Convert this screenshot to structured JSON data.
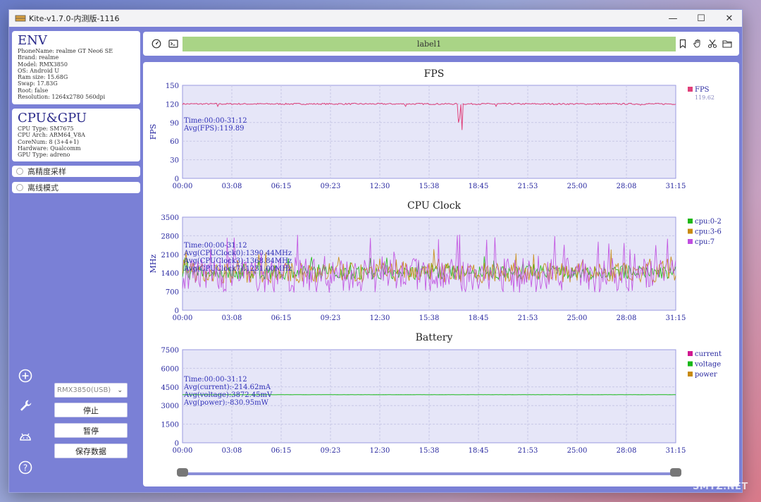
{
  "window": {
    "title": "Kite-v1.7.0-内测版-1116",
    "controls": {
      "minimize": "—",
      "maximize": "☐",
      "close": "✕"
    }
  },
  "env": {
    "heading": "ENV",
    "lines": [
      "PhoneName: realme GT Neo6 SE",
      "Brand: realme",
      "Model: RMX3850",
      "OS: Android U",
      "Ram size: 15.68G",
      "Swap: 17.83G",
      "Root: false",
      "Resolution: 1264x2780 560dpi"
    ]
  },
  "cpu_gpu": {
    "heading": "CPU&GPU",
    "lines": [
      "CPU Type: SM7675",
      "CPU Arch: ARM64_V8A",
      "CoreNum: 8 (3+4+1)",
      "Hardware: Qualcomm",
      "GPU Type: adreno"
    ]
  },
  "options": {
    "high_precision": "高精度采样",
    "offline_mode": "离线模式"
  },
  "device_select": {
    "value": "RMX3850(USB)"
  },
  "buttons": {
    "stop": "停止",
    "pause": "暂停",
    "save": "保存数据"
  },
  "toolbar": {
    "label": "label1"
  },
  "watermark": "SMYZ.NET",
  "colors": {
    "fps": "#e0407a",
    "cpu_0_2": "#1fb814",
    "cpu_3_6": "#c88a10",
    "cpu_7": "#c04ee0",
    "current": "#d01890",
    "voltage": "#18b818",
    "power": "#c88a10",
    "plot_bg": "#e6e6f8",
    "grid": "#c8c8e6",
    "axis_text": "#2828a0"
  },
  "chart_data": [
    {
      "type": "line",
      "title": "FPS",
      "ylabel": "FPS",
      "xlabel": "",
      "ylim": [
        0,
        150
      ],
      "yticks": [
        "0",
        "30",
        "60",
        "90",
        "120",
        "150"
      ],
      "xticks": [
        "00:00",
        "03:08",
        "06:15",
        "09:23",
        "12:30",
        "15:38",
        "18:45",
        "21:53",
        "25:00",
        "28:08",
        "31:15"
      ],
      "annotations": [
        "Time:00:00-31:12",
        "Avg(FPS):119.89"
      ],
      "series": [
        {
          "name": "FPS",
          "legend_value": "119.62",
          "color_key": "fps",
          "base": 120,
          "noise": 1.2,
          "x": [
            0,
            31.2
          ],
          "spikes": [
            [
              17.45,
              90
            ],
            [
              17.55,
              97
            ],
            [
              17.65,
              78
            ],
            [
              2.2,
              116
            ],
            [
              14.1,
              116
            ],
            [
              19.8,
              116
            ],
            [
              29.0,
              118
            ]
          ]
        }
      ]
    },
    {
      "type": "line",
      "title": "CPU Clock",
      "ylabel": "MHz",
      "xlabel": "",
      "ylim": [
        0,
        3500
      ],
      "yticks": [
        "0",
        "700",
        "1400",
        "2100",
        "2800",
        "3500"
      ],
      "xticks": [
        "00:00",
        "03:08",
        "06:15",
        "09:23",
        "12:30",
        "15:38",
        "18:45",
        "21:53",
        "25:00",
        "28:08",
        "31:15"
      ],
      "annotations": [
        "Time:00:00-31:12",
        "Avg(CPUClock0):1390.44MHz",
        "Avg(CPUClock3):1368.84MHz",
        "Avg(CPUClock7):1231.00MHz"
      ],
      "series": [
        {
          "name": "cpu:0-2",
          "color_key": "cpu_0_2",
          "base": 1390,
          "noise": 260,
          "x": [
            0,
            31.2
          ]
        },
        {
          "name": "cpu:3-6",
          "color_key": "cpu_3_6",
          "base": 1370,
          "noise": 380,
          "x": [
            0,
            31.2
          ]
        },
        {
          "name": "cpu:7",
          "color_key": "cpu_7",
          "base": 1250,
          "noise": 650,
          "x": [
            0,
            31.2
          ]
        }
      ]
    },
    {
      "type": "line",
      "title": "Battery",
      "ylabel": "",
      "xlabel": "",
      "ylim": [
        0,
        7500
      ],
      "yticks": [
        "0",
        "1500",
        "3000",
        "4500",
        "6000",
        "7500"
      ],
      "xticks": [
        "00:00",
        "03:08",
        "06:15",
        "09:23",
        "12:30",
        "15:38",
        "18:45",
        "21:53",
        "25:00",
        "28:08",
        "31:15"
      ],
      "annotations": [
        "Time:00:00-31:12",
        "Avg(current):-214.62mA",
        "Avg(voltage):3872.45mV",
        "Avg(power):-830.95mW"
      ],
      "series": [
        {
          "name": "current",
          "color_key": "current",
          "base": -214.62,
          "noise": 0,
          "x": [
            0,
            31.2
          ]
        },
        {
          "name": "voltage",
          "color_key": "voltage",
          "base": 3872.45,
          "noise": 6,
          "x": [
            0,
            31.2
          ]
        },
        {
          "name": "power",
          "color_key": "power",
          "base": -830.95,
          "noise": 0,
          "x": [
            0,
            31.2
          ]
        }
      ]
    }
  ]
}
